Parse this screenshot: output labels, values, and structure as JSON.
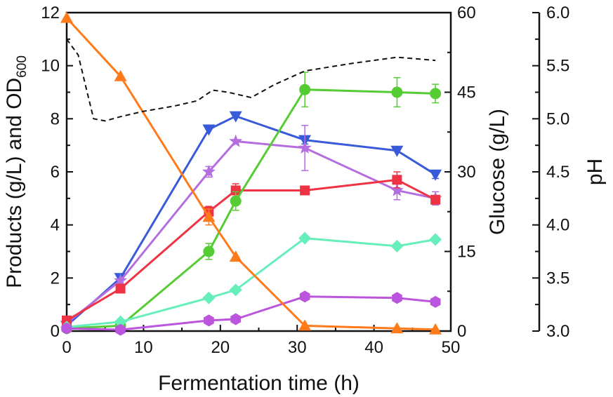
{
  "chart_data": {
    "type": "line",
    "xlabel": "Fermentation time (h)",
    "xlim": [
      0,
      50
    ],
    "x_ticks": [
      "0",
      "10",
      "20",
      "30",
      "40",
      "50"
    ],
    "left_axis": {
      "label_parts": [
        "Products (g/L) and OD",
        "600"
      ],
      "ylim": [
        0,
        12
      ],
      "ticks": [
        "0",
        "2",
        "4",
        "6",
        "8",
        "10",
        "12"
      ]
    },
    "glucose_axis": {
      "label": "Glucose (g/L)",
      "ylim": [
        0,
        60
      ],
      "ticks": [
        "0",
        "15",
        "30",
        "45",
        "60"
      ]
    },
    "ph_axis": {
      "label": "pH",
      "ylim": [
        3.0,
        6.0
      ],
      "ticks": [
        "3.0",
        "3.5",
        "4.0",
        "4.5",
        "5.0",
        "5.5",
        "6.0"
      ]
    },
    "series": [
      {
        "axis": "left",
        "color": "#3a5bd9",
        "marker": "triangle-down",
        "x": [
          0,
          7,
          18.5,
          22,
          31,
          43,
          48
        ],
        "values": [
          0.2,
          2.0,
          7.6,
          8.1,
          7.2,
          6.8,
          5.9
        ],
        "errors": [
          0,
          0,
          0,
          0,
          0.15,
          0,
          0.15
        ]
      },
      {
        "axis": "left",
        "color": "#b46ee0",
        "marker": "star",
        "x": [
          0,
          7,
          18.5,
          22,
          31,
          43,
          48
        ],
        "values": [
          0.3,
          1.9,
          6.0,
          7.15,
          6.9,
          5.3,
          5.0
        ],
        "errors": [
          0,
          0,
          0.2,
          0,
          0.85,
          0.35,
          0.25
        ]
      },
      {
        "axis": "left",
        "color": "#ee3344",
        "marker": "square",
        "x": [
          0,
          7,
          18.5,
          22,
          31,
          43,
          48
        ],
        "values": [
          0.4,
          1.6,
          4.5,
          5.3,
          5.3,
          5.7,
          4.95
        ],
        "errors": [
          0,
          0,
          0.2,
          0.25,
          0,
          0.3,
          0
        ]
      },
      {
        "axis": "left",
        "color": "#55cc33",
        "marker": "circle",
        "x": [
          0,
          7,
          18.5,
          22,
          31,
          43,
          48
        ],
        "values": [
          0.1,
          0.2,
          3.0,
          4.9,
          9.1,
          9.0,
          8.95
        ],
        "errors": [
          0,
          0,
          0.3,
          0.35,
          0.65,
          0.55,
          0.35
        ]
      },
      {
        "axis": "left",
        "color": "#66eebb",
        "marker": "diamond",
        "x": [
          0,
          7,
          18.5,
          22,
          31,
          43,
          48
        ],
        "values": [
          0.15,
          0.35,
          1.25,
          1.55,
          3.5,
          3.2,
          3.45
        ],
        "errors": [
          0,
          0,
          0,
          0,
          0,
          0,
          0
        ]
      },
      {
        "axis": "left",
        "color": "#bb55dd",
        "marker": "hexagon",
        "x": [
          0,
          7,
          18.5,
          22,
          31,
          43,
          48
        ],
        "values": [
          0.1,
          0.05,
          0.4,
          0.45,
          1.3,
          1.25,
          1.1
        ],
        "errors": [
          0,
          0,
          0,
          0,
          0,
          0,
          0
        ]
      },
      {
        "axis": "glucose",
        "color": "#ff7a1a",
        "marker": "triangle-up",
        "x": [
          0,
          7,
          18.5,
          22,
          31,
          43,
          48
        ],
        "values": [
          59,
          48,
          21.5,
          14,
          1,
          0.5,
          0.3
        ],
        "errors": [
          0,
          0,
          1.5,
          0,
          0,
          0,
          0
        ]
      },
      {
        "axis": "ph",
        "color": "#111111",
        "style": "dashed",
        "x": [
          0,
          1.5,
          2.5,
          3.5,
          5,
          7,
          10,
          14,
          17,
          19,
          21,
          24,
          27,
          31,
          37,
          43,
          48
        ],
        "values": [
          5.75,
          5.6,
          5.3,
          5.0,
          4.98,
          5.02,
          5.07,
          5.12,
          5.17,
          5.27,
          5.25,
          5.2,
          5.32,
          5.45,
          5.52,
          5.58,
          5.55
        ],
        "errors": []
      }
    ]
  }
}
